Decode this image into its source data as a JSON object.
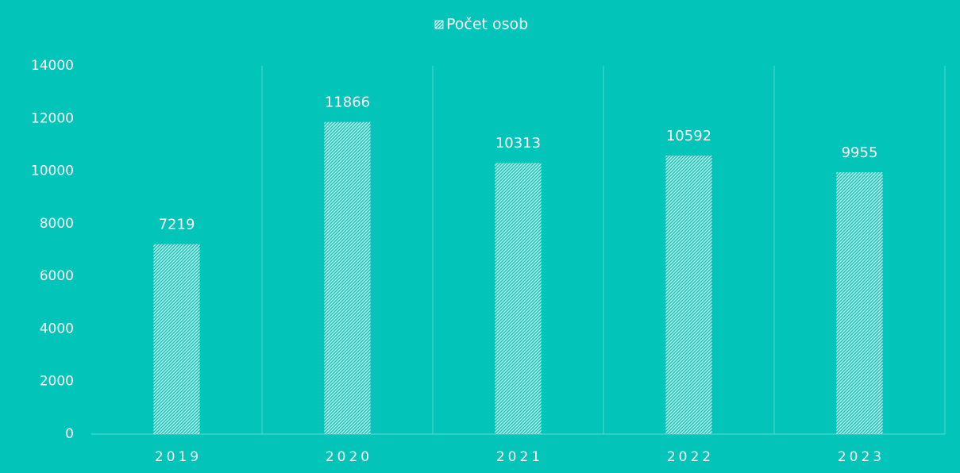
{
  "chart_data": {
    "type": "bar",
    "categories": [
      "2019",
      "2020",
      "2021",
      "2022",
      "2023"
    ],
    "series": [
      {
        "name": "Počet osob",
        "color": "#ffffff",
        "values": [
          7219,
          11866,
          10313,
          10592,
          9955
        ]
      }
    ],
    "ylim": [
      0,
      14000
    ],
    "yticks": [
      0,
      2000,
      4000,
      6000,
      8000,
      10000,
      12000,
      14000
    ],
    "grid": false,
    "legend": "top"
  }
}
